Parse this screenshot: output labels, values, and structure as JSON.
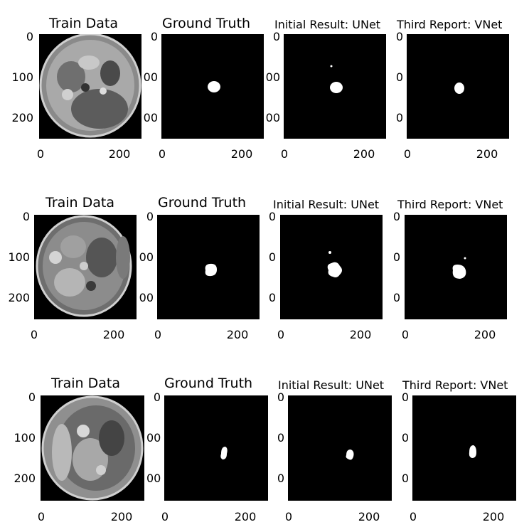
{
  "figure": {
    "rows": [
      {
        "panels": [
          {
            "title": "Train Data",
            "kind": "ct",
            "yticks": [
              "0",
              "100",
              "200"
            ],
            "xticks": [
              "0",
              "200"
            ]
          },
          {
            "title": "Ground Truth",
            "kind": "mask",
            "yticks": [
              "0",
              "00",
              "00"
            ],
            "xticks": [
              "0",
              "200"
            ]
          },
          {
            "title": "Initial Result: UNet",
            "kind": "mask",
            "yticks": [
              "0",
              "00",
              "00"
            ],
            "xticks": [
              "0",
              "200"
            ]
          },
          {
            "title": "Third Report: VNet",
            "kind": "mask",
            "yticks": [
              "0",
              "0",
              "0"
            ],
            "xticks": [
              "0",
              "200"
            ]
          }
        ]
      },
      {
        "panels": [
          {
            "title": "Train Data",
            "kind": "ct",
            "yticks": [
              "0",
              "100",
              "200"
            ],
            "xticks": [
              "0",
              "200"
            ]
          },
          {
            "title": "Ground Truth",
            "kind": "mask",
            "yticks": [
              "0",
              "00",
              "00"
            ],
            "xticks": [
              "0",
              "200"
            ]
          },
          {
            "title": "Initial Result: UNet",
            "kind": "mask",
            "yticks": [
              "0",
              "0",
              "0"
            ],
            "xticks": [
              "0",
              "200"
            ]
          },
          {
            "title": "Third Report: VNet",
            "kind": "mask",
            "yticks": [
              "0",
              "0",
              "0"
            ],
            "xticks": [
              "0",
              "200"
            ]
          }
        ]
      },
      {
        "panels": [
          {
            "title": "Train Data",
            "kind": "ct",
            "yticks": [
              "0",
              "100",
              "200"
            ],
            "xticks": [
              "0",
              "200"
            ]
          },
          {
            "title": "Ground Truth",
            "kind": "mask",
            "yticks": [
              "0",
              "00",
              "00"
            ],
            "xticks": [
              "0",
              "200"
            ]
          },
          {
            "title": "Initial Result: UNet",
            "kind": "mask",
            "yticks": [
              "0",
              "0",
              "0"
            ],
            "xticks": [
              "0",
              "200"
            ]
          },
          {
            "title": "Third Report: VNet",
            "kind": "mask",
            "yticks": [
              "0",
              "0",
              "0"
            ],
            "xticks": [
              "0",
              "200"
            ]
          }
        ]
      }
    ]
  }
}
